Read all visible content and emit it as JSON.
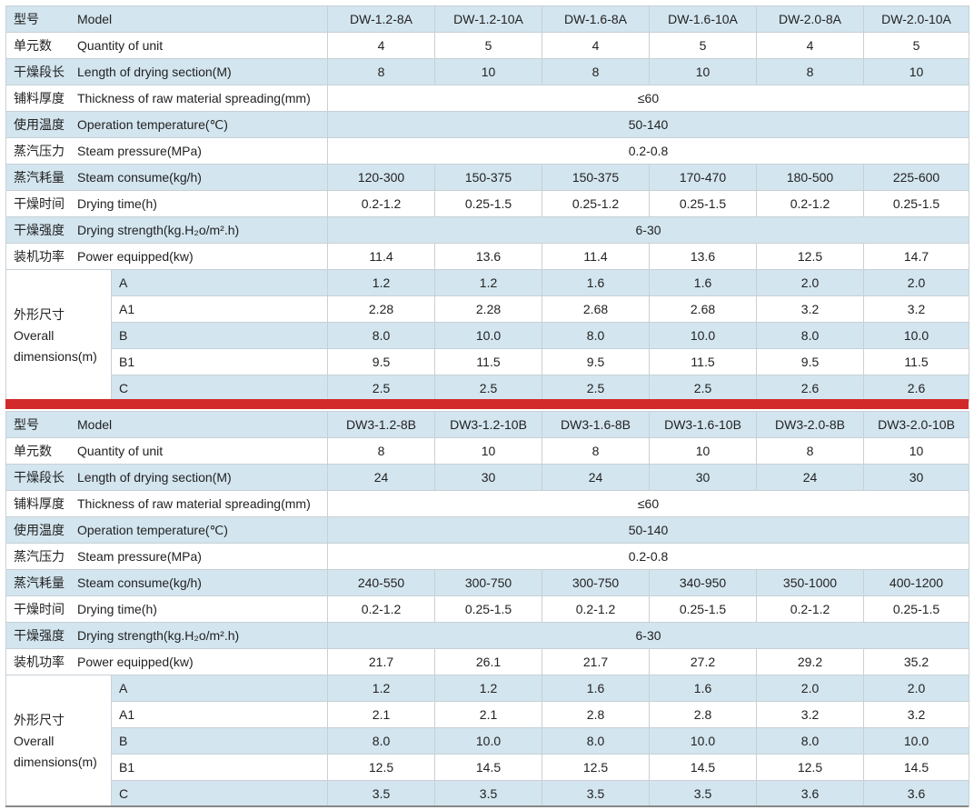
{
  "tables": [
    {
      "header": {
        "zh": "型号",
        "en": "Model",
        "models": [
          "DW-1.2-8A",
          "DW-1.2-10A",
          "DW-1.6-8A",
          "DW-1.6-10A",
          "DW-2.0-8A",
          "DW-2.0-10A"
        ]
      },
      "rows": [
        {
          "zh": "单元数",
          "en": "Quantity of unit",
          "values": [
            "4",
            "5",
            "4",
            "5",
            "4",
            "5"
          ]
        },
        {
          "zh": "干燥段长",
          "en": "Length of drying section(M)",
          "values": [
            "8",
            "10",
            "8",
            "10",
            "8",
            "10"
          ]
        },
        {
          "zh": "铺料厚度",
          "en": "Thickness of raw material spreading(mm)",
          "values": [
            "≤60"
          ]
        },
        {
          "zh": "使用温度",
          "en": "Operation temperature(℃)",
          "values": [
            "50-140"
          ]
        },
        {
          "zh": "蒸汽压力",
          "en": "Steam pressure(MPa)",
          "values": [
            "0.2-0.8"
          ]
        },
        {
          "zh": "蒸汽耗量",
          "en": "Steam consume(kg/h)",
          "values": [
            "120-300",
            "150-375",
            "150-375",
            "170-470",
            "180-500",
            "225-600"
          ]
        },
        {
          "zh": "干燥时间",
          "en": "Drying time(h)",
          "values": [
            "0.2-1.2",
            "0.25-1.5",
            "0.25-1.2",
            "0.25-1.5",
            "0.2-1.2",
            "0.25-1.5"
          ]
        },
        {
          "zh": "干燥强度",
          "en": "Drying strength(kg.H₂o/m².h)",
          "values": [
            "6-30"
          ]
        },
        {
          "zh": "装机功率",
          "en": "Power equipped(kw)",
          "values": [
            "11.4",
            "13.6",
            "11.4",
            "13.6",
            "12.5",
            "14.7"
          ]
        }
      ],
      "dimensions": {
        "zh": "外形尺寸",
        "en_lines": [
          "Overall",
          "dimensions(m)"
        ],
        "rows": [
          {
            "label": "A",
            "values": [
              "1.2",
              "1.2",
              "1.6",
              "1.6",
              "2.0",
              "2.0"
            ]
          },
          {
            "label": "A1",
            "values": [
              "2.28",
              "2.28",
              "2.68",
              "2.68",
              "3.2",
              "3.2"
            ]
          },
          {
            "label": "B",
            "values": [
              "8.0",
              "10.0",
              "8.0",
              "10.0",
              "8.0",
              "10.0"
            ]
          },
          {
            "label": "B1",
            "values": [
              "9.5",
              "11.5",
              "9.5",
              "11.5",
              "9.5",
              "11.5"
            ]
          },
          {
            "label": "C",
            "values": [
              "2.5",
              "2.5",
              "2.5",
              "2.5",
              "2.6",
              "2.6"
            ]
          }
        ]
      }
    },
    {
      "header": {
        "zh": "型号",
        "en": "Model",
        "models": [
          "DW3-1.2-8B",
          "DW3-1.2-10B",
          "DW3-1.6-8B",
          "DW3-1.6-10B",
          "DW3-2.0-8B",
          "DW3-2.0-10B"
        ]
      },
      "rows": [
        {
          "zh": "单元数",
          "en": "Quantity of unit",
          "values": [
            "8",
            "10",
            "8",
            "10",
            "8",
            "10"
          ]
        },
        {
          "zh": "干燥段长",
          "en": "Length of drying section(M)",
          "values": [
            "24",
            "30",
            "24",
            "30",
            "24",
            "30"
          ]
        },
        {
          "zh": "铺料厚度",
          "en": "Thickness of raw material spreading(mm)",
          "values": [
            "≤60"
          ]
        },
        {
          "zh": "使用温度",
          "en": "Operation temperature(℃)",
          "values": [
            "50-140"
          ]
        },
        {
          "zh": "蒸汽压力",
          "en": "Steam pressure(MPa)",
          "values": [
            "0.2-0.8"
          ]
        },
        {
          "zh": "蒸汽耗量",
          "en": "Steam consume(kg/h)",
          "values": [
            "240-550",
            "300-750",
            "300-750",
            "340-950",
            "350-1000",
            "400-1200"
          ]
        },
        {
          "zh": "干燥时间",
          "en": "Drying time(h)",
          "values": [
            "0.2-1.2",
            "0.25-1.5",
            "0.2-1.2",
            "0.25-1.5",
            "0.2-1.2",
            "0.25-1.5"
          ]
        },
        {
          "zh": "干燥强度",
          "en": "Drying strength(kg.H₂o/m².h)",
          "values": [
            "6-30"
          ]
        },
        {
          "zh": "装机功率",
          "en": "Power equipped(kw)",
          "values": [
            "21.7",
            "26.1",
            "21.7",
            "27.2",
            "29.2",
            "35.2"
          ]
        }
      ],
      "dimensions": {
        "zh": "外形尺寸",
        "en_lines": [
          "Overall",
          "dimensions(m)"
        ],
        "rows": [
          {
            "label": "A",
            "values": [
              "1.2",
              "1.2",
              "1.6",
              "1.6",
              "2.0",
              "2.0"
            ]
          },
          {
            "label": "A1",
            "values": [
              "2.1",
              "2.1",
              "2.8",
              "2.8",
              "3.2",
              "3.2"
            ]
          },
          {
            "label": "B",
            "values": [
              "8.0",
              "10.0",
              "8.0",
              "10.0",
              "8.0",
              "10.0"
            ]
          },
          {
            "label": "B1",
            "values": [
              "12.5",
              "14.5",
              "12.5",
              "14.5",
              "12.5",
              "14.5"
            ]
          },
          {
            "label": "C",
            "values": [
              "3.5",
              "3.5",
              "3.5",
              "3.5",
              "3.6",
              "3.6"
            ]
          }
        ]
      }
    }
  ]
}
